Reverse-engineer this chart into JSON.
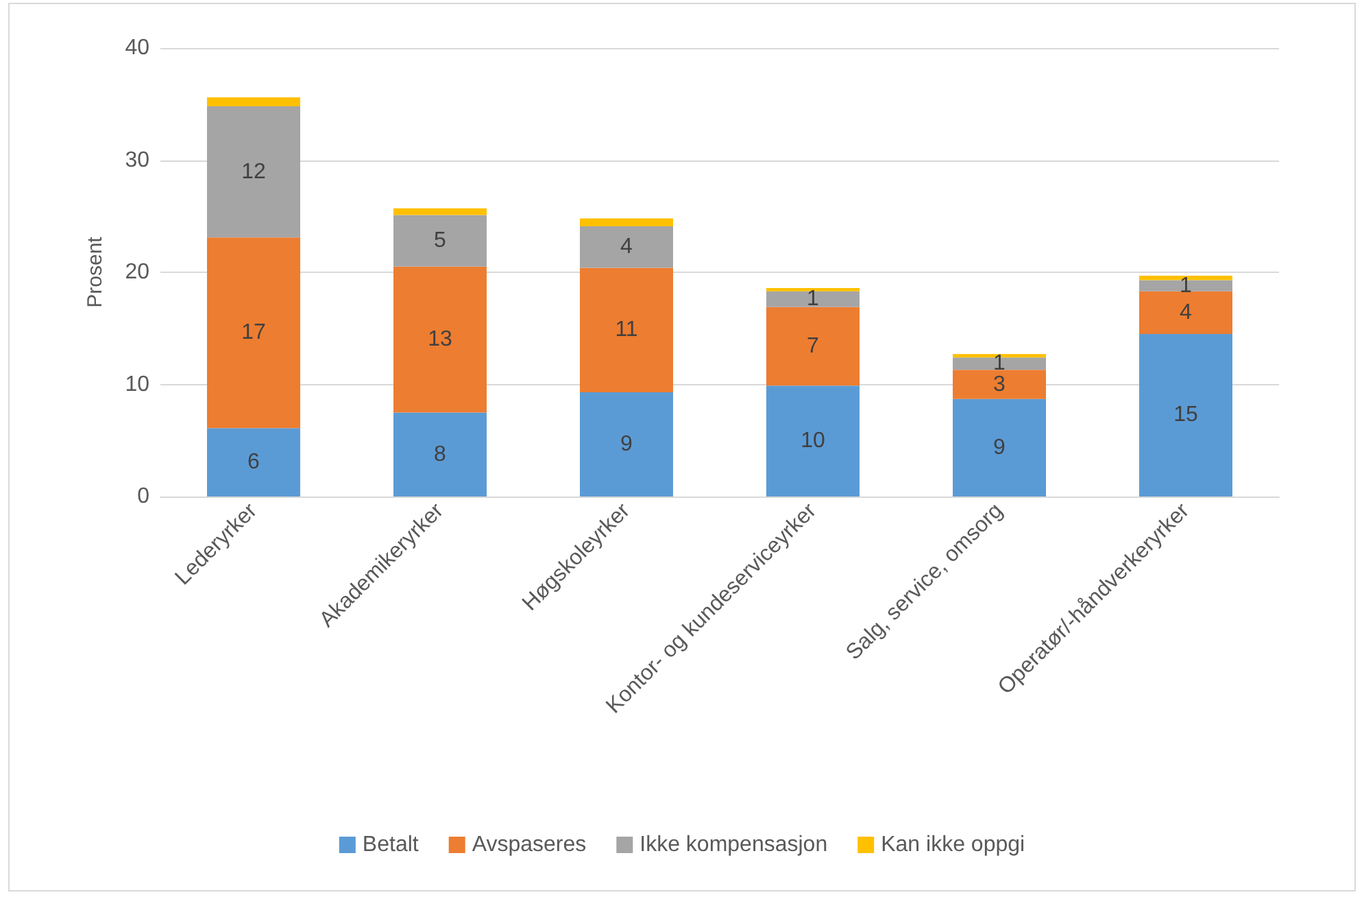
{
  "chart_data": {
    "type": "bar",
    "ylabel": "Prosent",
    "stacked": true,
    "categories": [
      "Lederyrker",
      "Akademikeryrker",
      "Høgskoleyrker",
      "Kontor- og kundeserviceyrker",
      "Salg, service, omsorg",
      "Operatør/-håndverkeryrker"
    ],
    "series": [
      {
        "name": "Betalt",
        "color": "#5b9bd5",
        "values": [
          6.1,
          7.5,
          9.3,
          9.9,
          8.7,
          14.5
        ],
        "value_labels": [
          "6",
          "8",
          "9",
          "10",
          "9",
          "15"
        ]
      },
      {
        "name": "Avspaseres",
        "color": "#ed7d31",
        "values": [
          17.0,
          13.0,
          11.1,
          7.0,
          2.6,
          3.8
        ],
        "value_labels": [
          "17",
          "13",
          "11",
          "7",
          "3",
          "4"
        ]
      },
      {
        "name": "Ikke kompensasjon",
        "color": "#a5a5a5",
        "values": [
          11.7,
          4.6,
          3.7,
          1.4,
          1.1,
          1.0
        ],
        "value_labels": [
          "12",
          "5",
          "4",
          "1",
          "1",
          "1"
        ]
      },
      {
        "name": "Kan ikke oppgi",
        "color": "#ffc000",
        "values": [
          0.8,
          0.6,
          0.7,
          0.3,
          0.3,
          0.4
        ]
      }
    ],
    "ylim": [
      0,
      40
    ],
    "yticks": [
      0,
      10,
      20,
      30,
      40
    ],
    "grid": "y",
    "legend": "bottom"
  }
}
